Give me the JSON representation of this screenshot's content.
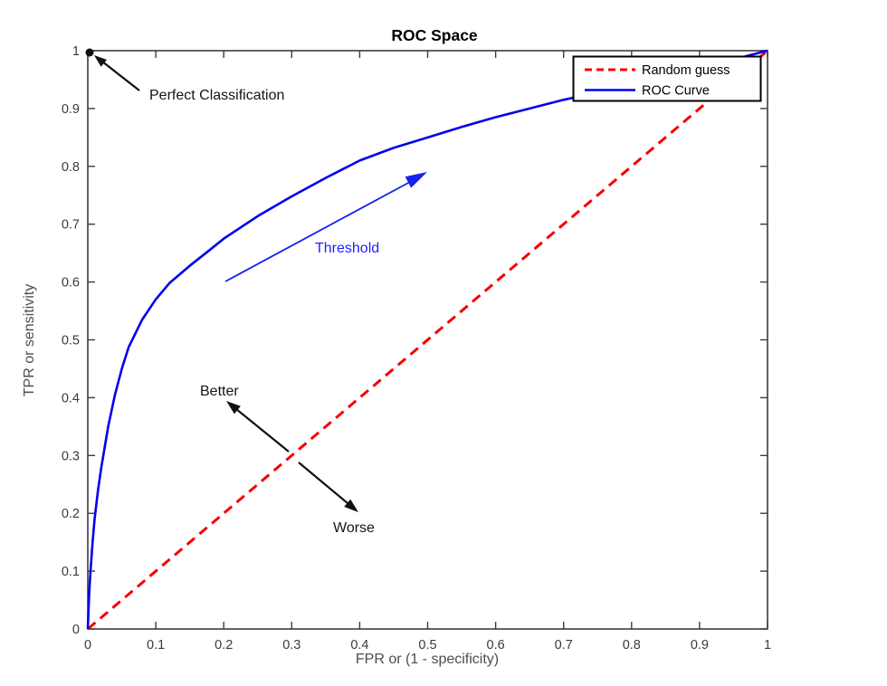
{
  "figure": {
    "title": "ROC Space",
    "xlabel": "FPR or (1 - specificity)",
    "ylabel": "TPR or sensitivity"
  },
  "legend": {
    "position": "upper right",
    "items": [
      {
        "label": "Random guess",
        "color": "#f50000",
        "style": "dashed"
      },
      {
        "label": "ROC Curve",
        "color": "#0000ee",
        "style": "solid"
      }
    ]
  },
  "annotations": {
    "perfect_classification": "Perfect Classification",
    "threshold": "Threshold",
    "better": "Better",
    "worse": "Worse"
  },
  "colors": {
    "roc_curve": "#0000ee",
    "random_guess": "#f50000",
    "threshold_annotation": "#1f1fff",
    "axis": "#3c3c3c"
  },
  "chart_data": {
    "type": "line",
    "title": "ROC Space",
    "xlabel": "FPR or (1 - specificity)",
    "ylabel": "TPR or sensitivity",
    "xlim": [
      0,
      1
    ],
    "ylim": [
      0,
      1
    ],
    "xticks": [
      "0",
      "0.1",
      "0.2",
      "0.3",
      "0.4",
      "0.5",
      "0.6",
      "0.7",
      "0.8",
      "0.9",
      "1"
    ],
    "yticks": [
      "0",
      "0.1",
      "0.2",
      "0.3",
      "0.4",
      "0.5",
      "0.6",
      "0.7",
      "0.8",
      "0.9",
      "1"
    ],
    "grid": false,
    "legend_position": "upper right",
    "series": [
      {
        "name": "Random guess",
        "color": "#f50000",
        "style": "dashed",
        "dash": "11 7",
        "width": 3,
        "points": [
          [
            0,
            0
          ],
          [
            1,
            1
          ]
        ]
      },
      {
        "name": "ROC Curve",
        "color": "#0000ee",
        "style": "solid",
        "dash": "",
        "width": 2.6,
        "points": [
          [
            0,
            0
          ],
          [
            0.002,
            0.06
          ],
          [
            0.004,
            0.1
          ],
          [
            0.007,
            0.15
          ],
          [
            0.01,
            0.19
          ],
          [
            0.015,
            0.24
          ],
          [
            0.02,
            0.28
          ],
          [
            0.03,
            0.35
          ],
          [
            0.04,
            0.405
          ],
          [
            0.05,
            0.45
          ],
          [
            0.06,
            0.487
          ],
          [
            0.08,
            0.535
          ],
          [
            0.1,
            0.57
          ],
          [
            0.12,
            0.598
          ],
          [
            0.15,
            0.628
          ],
          [
            0.18,
            0.656
          ],
          [
            0.2,
            0.675
          ],
          [
            0.25,
            0.714
          ],
          [
            0.3,
            0.748
          ],
          [
            0.35,
            0.78
          ],
          [
            0.4,
            0.81
          ],
          [
            0.45,
            0.832
          ],
          [
            0.5,
            0.85
          ],
          [
            0.55,
            0.868
          ],
          [
            0.6,
            0.885
          ],
          [
            0.65,
            0.9
          ],
          [
            0.7,
            0.915
          ],
          [
            0.75,
            0.928
          ],
          [
            0.8,
            0.942
          ],
          [
            0.85,
            0.956
          ],
          [
            0.9,
            0.97
          ],
          [
            0.95,
            0.985
          ],
          [
            1,
            1
          ]
        ]
      }
    ],
    "annotations": [
      {
        "text": "Perfect Classification",
        "point_xy": [
          0,
          1
        ],
        "kind": "arrow-to-point"
      },
      {
        "text": "Threshold",
        "kind": "arrow-along-curve",
        "from_xy": [
          0.2,
          0.6
        ],
        "to_xy": [
          0.5,
          0.79
        ]
      },
      {
        "text": "Better",
        "kind": "arrow",
        "from_xy": [
          0.3,
          0.305
        ],
        "to_xy": [
          0.205,
          0.395
        ]
      },
      {
        "text": "Worse",
        "kind": "arrow",
        "from_xy": [
          0.31,
          0.29
        ],
        "to_xy": [
          0.4,
          0.2
        ]
      }
    ]
  }
}
